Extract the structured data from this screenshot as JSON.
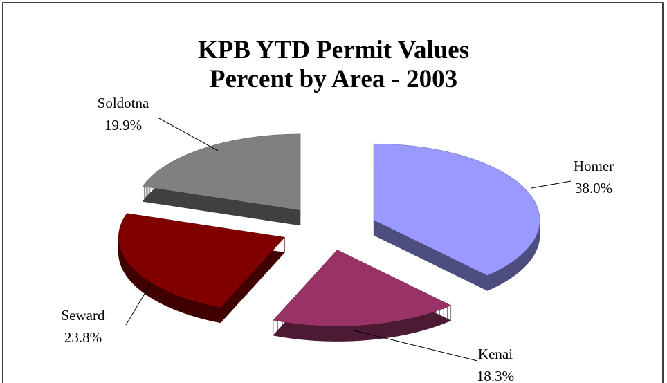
{
  "chart_data": {
    "type": "pie3d",
    "title": "KPB YTD Permit Values",
    "subtitle": "Percent by Area - 2003",
    "categories": [
      "Homer",
      "Kenai",
      "Seward",
      "Soldotna"
    ],
    "values": [
      38.0,
      18.3,
      23.8,
      19.9
    ],
    "value_labels": [
      "38.0%",
      "18.3%",
      "23.8%",
      "19.9%"
    ],
    "colors": [
      "#9999ff",
      "#993366",
      "#800000",
      "#808080"
    ]
  }
}
